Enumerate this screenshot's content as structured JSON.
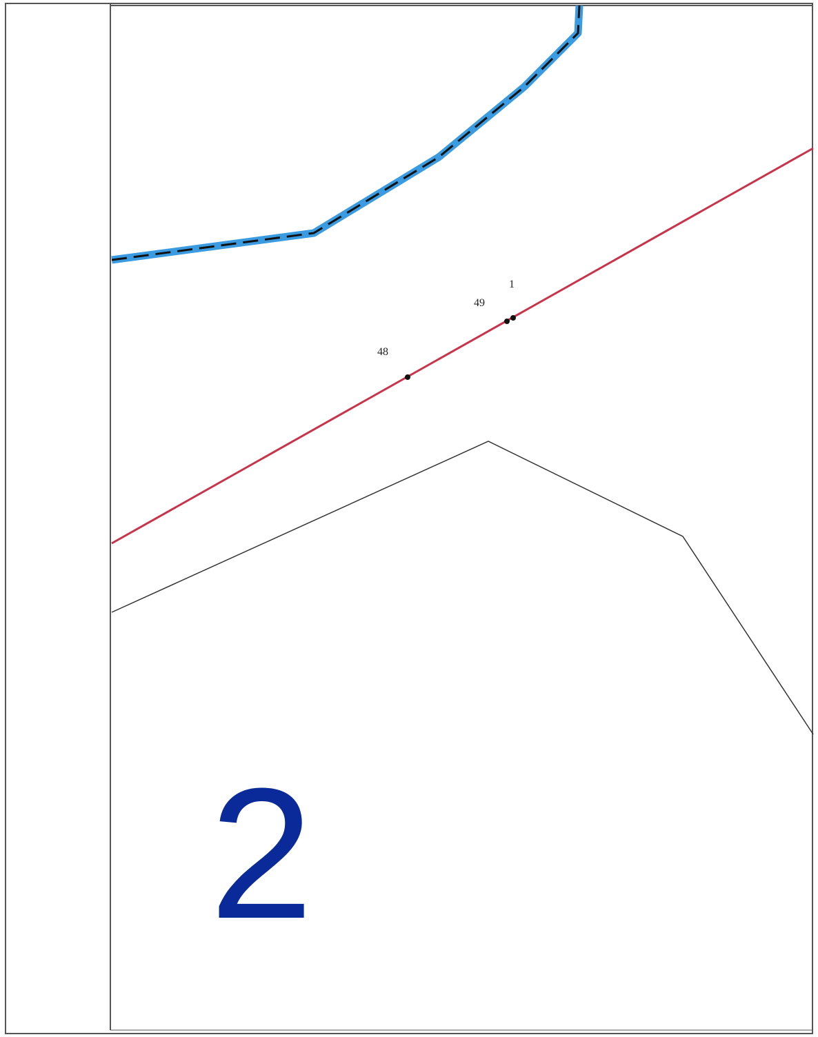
{
  "map": {
    "points": [
      {
        "label": "1"
      },
      {
        "label": "49"
      },
      {
        "label": "48"
      }
    ],
    "zone_number": "2",
    "colors": {
      "boundary_red": "#c8334a",
      "water_blue": "#3a9be0",
      "dash_black": "#111111",
      "thin_line": "#333333",
      "zone_number": "#0a2a9a",
      "frame": "#555555"
    }
  }
}
